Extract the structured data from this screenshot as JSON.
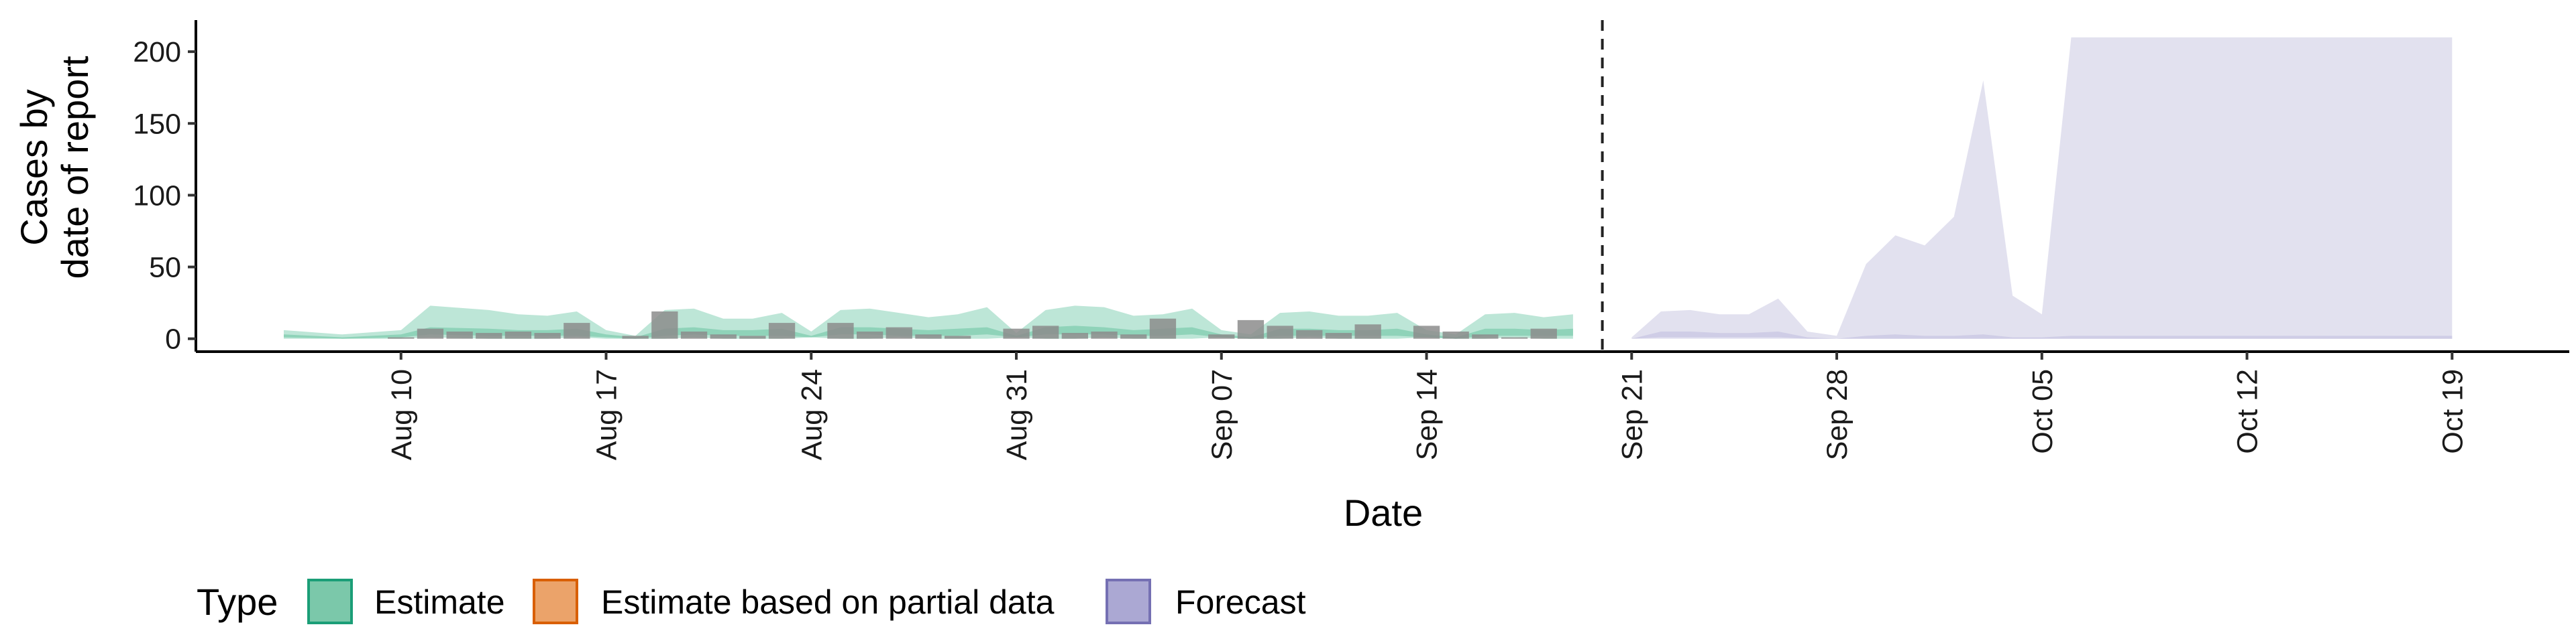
{
  "chart_data": {
    "type": "area",
    "xlabel": "Date",
    "ylabel_lines": [
      "Cases by",
      "date of report"
    ],
    "ylim": [
      -9,
      222
    ],
    "xlim": [
      "2020-08-03",
      "2020-10-23"
    ],
    "grid": false,
    "y_ticks": [
      0,
      50,
      100,
      150,
      200
    ],
    "x_ticks": [
      {
        "date": "2020-08-10",
        "label": "Aug 10"
      },
      {
        "date": "2020-08-17",
        "label": "Aug 17"
      },
      {
        "date": "2020-08-24",
        "label": "Aug 24"
      },
      {
        "date": "2020-08-31",
        "label": "Aug 31"
      },
      {
        "date": "2020-09-07",
        "label": "Sep 07"
      },
      {
        "date": "2020-09-14",
        "label": "Sep 14"
      },
      {
        "date": "2020-09-21",
        "label": "Sep 21"
      },
      {
        "date": "2020-09-28",
        "label": "Sep 28"
      },
      {
        "date": "2020-10-05",
        "label": "Oct 05"
      },
      {
        "date": "2020-10-12",
        "label": "Oct 12"
      },
      {
        "date": "2020-10-19",
        "label": "Oct 19"
      }
    ],
    "forecast_start": "2020-09-20",
    "legend": {
      "title": "Type",
      "position": "bottom-left",
      "entries": [
        {
          "label": "Estimate",
          "fill": "#7bc8aa",
          "stroke": "#1b9e77"
        },
        {
          "label": "Estimate based on partial data",
          "fill": "#eba36a",
          "stroke": "#d95f02"
        },
        {
          "label": "Forecast",
          "fill": "#aba8d3",
          "stroke": "#7570b3"
        }
      ]
    },
    "colors": {
      "estimate_outer": "#bde6d7",
      "estimate_inner": "#8fd3b9",
      "forecast_outer": "#e2e1ef",
      "forecast_inner": "#cfcde6",
      "bars": "#8c8c8c"
    },
    "observed_cases": {
      "dates": [
        "2020-08-10",
        "2020-08-11",
        "2020-08-12",
        "2020-08-13",
        "2020-08-14",
        "2020-08-15",
        "2020-08-16",
        "2020-08-17",
        "2020-08-18",
        "2020-08-19",
        "2020-08-20",
        "2020-08-21",
        "2020-08-22",
        "2020-08-23",
        "2020-08-24",
        "2020-08-25",
        "2020-08-26",
        "2020-08-27",
        "2020-08-28",
        "2020-08-29",
        "2020-08-30",
        "2020-08-31",
        "2020-09-01",
        "2020-09-02",
        "2020-09-03",
        "2020-09-04",
        "2020-09-05",
        "2020-09-06",
        "2020-09-07",
        "2020-09-08",
        "2020-09-09",
        "2020-09-10",
        "2020-09-11",
        "2020-09-12",
        "2020-09-13",
        "2020-09-14",
        "2020-09-15",
        "2020-09-16",
        "2020-09-17",
        "2020-09-18",
        "2020-09-19"
      ],
      "values": [
        1,
        7,
        5,
        4,
        5,
        4,
        11,
        0,
        2,
        19,
        5,
        3,
        2,
        11,
        0,
        11,
        5,
        8,
        3,
        2,
        0,
        7,
        9,
        4,
        5,
        3,
        14,
        0,
        3,
        13,
        9,
        6,
        4,
        10,
        0,
        9,
        5,
        3,
        1,
        7,
        0
      ]
    },
    "estimate_band": {
      "dates": [
        "2020-08-06",
        "2020-08-08",
        "2020-08-10",
        "2020-08-11",
        "2020-08-13",
        "2020-08-14",
        "2020-08-15",
        "2020-08-16",
        "2020-08-17",
        "2020-08-18",
        "2020-08-19",
        "2020-08-20",
        "2020-08-21",
        "2020-08-22",
        "2020-08-23",
        "2020-08-24",
        "2020-08-25",
        "2020-08-26",
        "2020-08-27",
        "2020-08-28",
        "2020-08-29",
        "2020-08-30",
        "2020-08-31",
        "2020-09-01",
        "2020-09-02",
        "2020-09-03",
        "2020-09-04",
        "2020-09-05",
        "2020-09-06",
        "2020-09-07",
        "2020-09-08",
        "2020-09-09",
        "2020-09-10",
        "2020-09-11",
        "2020-09-12",
        "2020-09-13",
        "2020-09-14",
        "2020-09-15",
        "2020-09-16",
        "2020-09-17",
        "2020-09-18",
        "2020-09-19"
      ],
      "outer_upper": [
        6,
        3,
        6,
        23,
        20,
        17,
        16,
        19,
        6,
        2,
        20,
        21,
        14,
        14,
        18,
        5,
        20,
        21,
        18,
        15,
        17,
        22,
        4,
        20,
        23,
        22,
        16,
        17,
        21,
        6,
        3,
        18,
        19,
        16,
        16,
        18,
        6,
        3,
        17,
        18,
        15,
        17
      ],
      "outer_lower": [
        0,
        0,
        0,
        1,
        0,
        0,
        0,
        1,
        0,
        0,
        0,
        1,
        0,
        0,
        0,
        1,
        0,
        0,
        1,
        0,
        0,
        0,
        1,
        0,
        0,
        1,
        0,
        0,
        0,
        1,
        0,
        0,
        1,
        0,
        0,
        0,
        1,
        0,
        0,
        1,
        0,
        0
      ],
      "inner_upper": [
        3,
        1,
        3,
        8,
        7,
        6,
        6,
        7,
        3,
        1,
        7,
        8,
        6,
        6,
        7,
        2,
        8,
        8,
        7,
        6,
        7,
        8,
        2,
        8,
        9,
        8,
        6,
        7,
        8,
        3,
        1,
        7,
        7,
        6,
        6,
        7,
        3,
        1,
        7,
        7,
        6,
        7
      ],
      "inner_lower": [
        1,
        0,
        1,
        3,
        2,
        2,
        2,
        2,
        1,
        0,
        2,
        3,
        2,
        2,
        2,
        1,
        3,
        3,
        2,
        2,
        2,
        3,
        1,
        3,
        3,
        3,
        2,
        2,
        3,
        1,
        0,
        2,
        2,
        2,
        2,
        2,
        1,
        0,
        2,
        2,
        2,
        2
      ]
    },
    "forecast_band": {
      "dates": [
        "2020-09-21",
        "2020-09-22",
        "2020-09-23",
        "2020-09-24",
        "2020-09-25",
        "2020-09-26",
        "2020-09-27",
        "2020-09-28",
        "2020-09-29",
        "2020-09-30",
        "2020-10-01",
        "2020-10-02",
        "2020-10-03",
        "2020-10-04",
        "2020-10-05",
        "2020-10-06",
        "2020-10-19"
      ],
      "outer_upper": [
        1,
        19,
        20,
        17,
        17,
        28,
        5,
        2,
        52,
        72,
        65,
        85,
        180,
        30,
        17,
        210,
        210
      ],
      "outer_lower": [
        0,
        0,
        0,
        0,
        0,
        0,
        0,
        0,
        0,
        0,
        0,
        0,
        0,
        0,
        0,
        0,
        0
      ],
      "inner_upper": [
        0,
        5,
        5,
        4,
        4,
        5,
        1,
        0,
        2,
        3,
        2,
        2,
        3,
        1,
        1,
        2,
        2
      ],
      "inner_lower": [
        0,
        1,
        1,
        1,
        1,
        1,
        0,
        0,
        0,
        0,
        0,
        0,
        0,
        0,
        0,
        0,
        0
      ]
    }
  }
}
